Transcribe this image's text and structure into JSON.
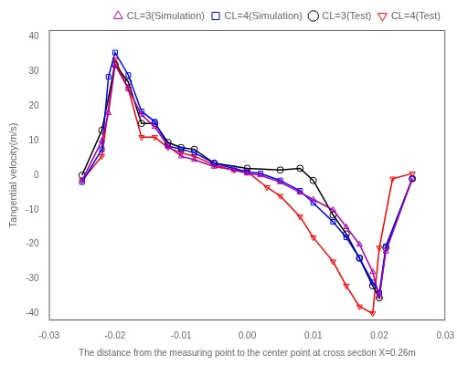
{
  "chart_data": {
    "type": "line",
    "xlabel": "The distance from the measuring point to the center point at cross section X=0.26m",
    "ylabel": "Tangential velocity(m/s)",
    "xlim": [
      -0.03,
      0.03
    ],
    "ylim": [
      -42,
      42
    ],
    "xticks": [
      -0.03,
      -0.02,
      -0.01,
      {
        "value": 0,
        "label": "0.00"
      },
      0.01,
      0.02,
      0.03
    ],
    "yticks": [
      -40,
      -30,
      -20,
      -10,
      0,
      10,
      20,
      30,
      40
    ],
    "grid": false,
    "legend": "upper right",
    "series": [
      {
        "name": "CL=3(Simulation)",
        "color": "#AA00AA",
        "marker": "triangle_up",
        "x": [
          -0.025,
          -0.022,
          -0.021,
          -0.02,
          -0.018,
          -0.016,
          -0.014,
          -0.012,
          -0.01,
          -0.008,
          -0.005,
          -0.002,
          0.0,
          0.002,
          0.005,
          0.008,
          0.01,
          0.013,
          0.015,
          0.017,
          0.019,
          0.02,
          0.021,
          0.025
        ],
        "values": [
          -1.5,
          10.0,
          18.0,
          32.0,
          25.0,
          17.5,
          14.0,
          8.5,
          5.5,
          4.5,
          2.5,
          1.5,
          0.5,
          0.0,
          -2.0,
          -5.0,
          -7.0,
          -10.0,
          -15.0,
          -20.0,
          -28.0,
          -35.0,
          -22.0,
          -1.0
        ]
      },
      {
        "name": "CL=4(Simulation)",
        "color": "#0000FF",
        "marker": "square",
        "x": [
          -0.025,
          -0.022,
          -0.021,
          -0.02,
          -0.018,
          -0.016,
          -0.014,
          -0.012,
          -0.01,
          -0.008,
          -0.005,
          -0.002,
          0.0,
          0.002,
          0.005,
          0.008,
          0.01,
          0.013,
          0.015,
          0.017,
          0.019,
          0.02,
          0.021,
          0.025
        ],
        "values": [
          -2.0,
          7.5,
          28.5,
          35.5,
          29.0,
          18.5,
          15.5,
          8.5,
          7.5,
          6.5,
          3.5,
          2.0,
          1.0,
          0.5,
          -1.5,
          -4.5,
          -8.0,
          -13.5,
          -18.0,
          -24.0,
          -31.0,
          -34.0,
          -20.5,
          -1.0
        ]
      },
      {
        "name": "CL=3(Test)",
        "color": "#000000",
        "marker": "circle",
        "x": [
          -0.025,
          -0.022,
          -0.02,
          -0.018,
          -0.016,
          -0.014,
          -0.012,
          -0.01,
          -0.008,
          -0.005,
          0.0,
          0.005,
          0.008,
          0.01,
          0.013,
          0.015,
          0.017,
          0.019,
          0.02,
          0.021,
          0.025
        ],
        "values": [
          0.0,
          13.0,
          32.0,
          27.0,
          15.0,
          15.0,
          9.5,
          8.0,
          7.5,
          3.5,
          2.0,
          1.5,
          2.0,
          -1.5,
          -11.5,
          -17.0,
          -24.0,
          -32.0,
          -35.5,
          -21.0,
          -1.0
        ]
      },
      {
        "name": "CL=4(Test)",
        "color": "#FF0000",
        "marker": "triangle_down",
        "x": [
          -0.025,
          -0.022,
          -0.02,
          -0.018,
          -0.016,
          -0.014,
          -0.012,
          -0.01,
          -0.008,
          -0.005,
          -0.002,
          0.0,
          0.003,
          0.005,
          0.008,
          0.01,
          0.013,
          0.015,
          0.017,
          0.019,
          0.02,
          0.022,
          0.025
        ],
        "values": [
          -1.5,
          5.5,
          33.5,
          25.0,
          11.0,
          11.0,
          8.0,
          6.5,
          5.5,
          3.0,
          1.5,
          1.0,
          -3.5,
          -6.0,
          -12.0,
          -18.0,
          -25.0,
          -32.0,
          -38.0,
          -40.0,
          -21.0,
          -1.0,
          0.5
        ]
      }
    ]
  }
}
